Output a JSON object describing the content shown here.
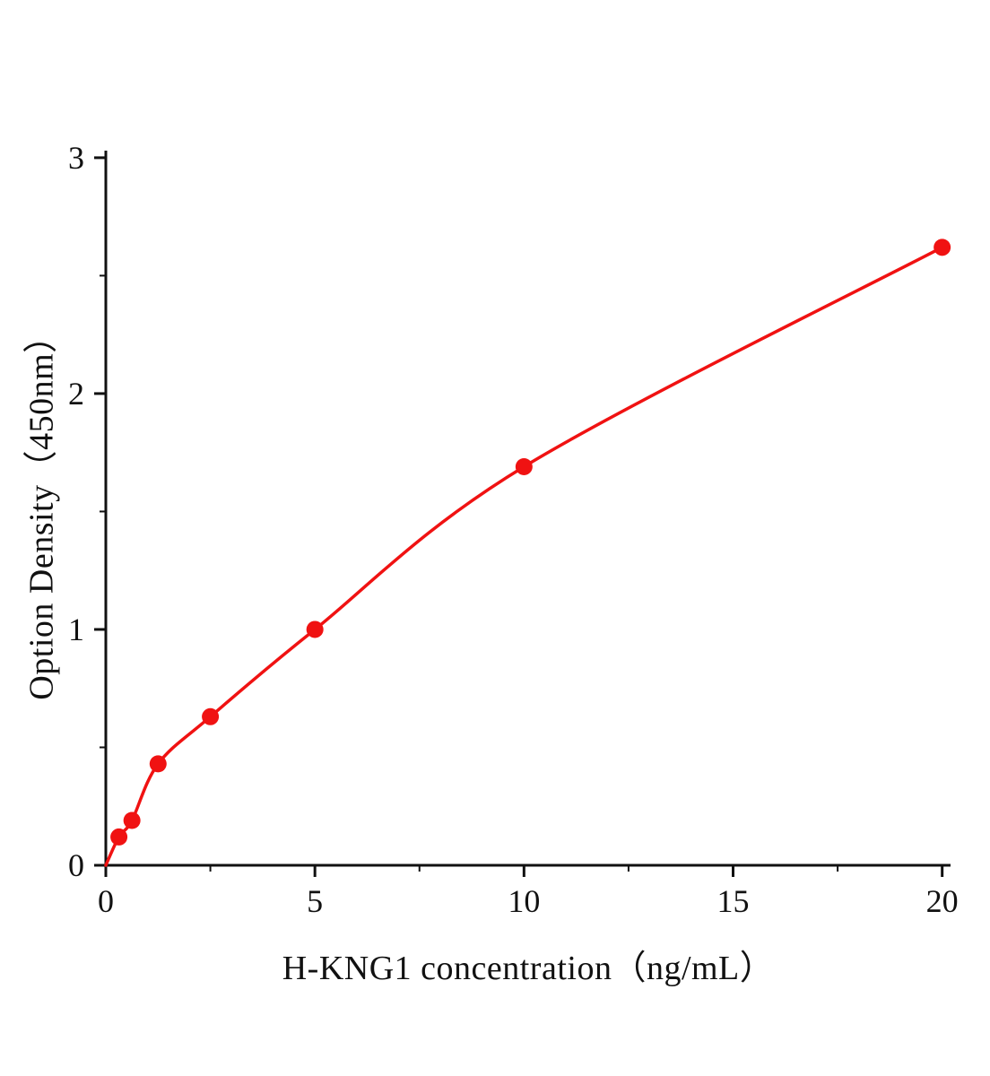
{
  "figure": {
    "background": "#ffffff"
  },
  "chart_data": {
    "type": "line",
    "title": "",
    "xlabel": "H-KNG1 concentration（ng/mL）",
    "ylabel": "Option Density（450nm）",
    "x": [
      0.313,
      0.625,
      1.25,
      2.5,
      5,
      10,
      20
    ],
    "y": [
      0.12,
      0.19,
      0.43,
      0.63,
      1.0,
      1.69,
      2.62
    ],
    "curve_start_x": 0,
    "curve_start_y": 0,
    "xlim": [
      0,
      20.2
    ],
    "ylim": [
      0,
      3.03
    ],
    "x_ticks": [
      0,
      5,
      10,
      15,
      20
    ],
    "y_ticks": [
      0,
      1,
      2,
      3
    ],
    "x_minor_ticks": [
      2.5,
      7.5,
      12.5,
      17.5
    ],
    "y_minor_ticks": [
      0.5,
      1.5,
      2.5
    ],
    "grid": false,
    "legend": "none",
    "line_color": "#f01212",
    "marker_color": "#f01212",
    "axis_color": "#111111",
    "marker_radius": 9.5,
    "line_width": 3.5
  }
}
